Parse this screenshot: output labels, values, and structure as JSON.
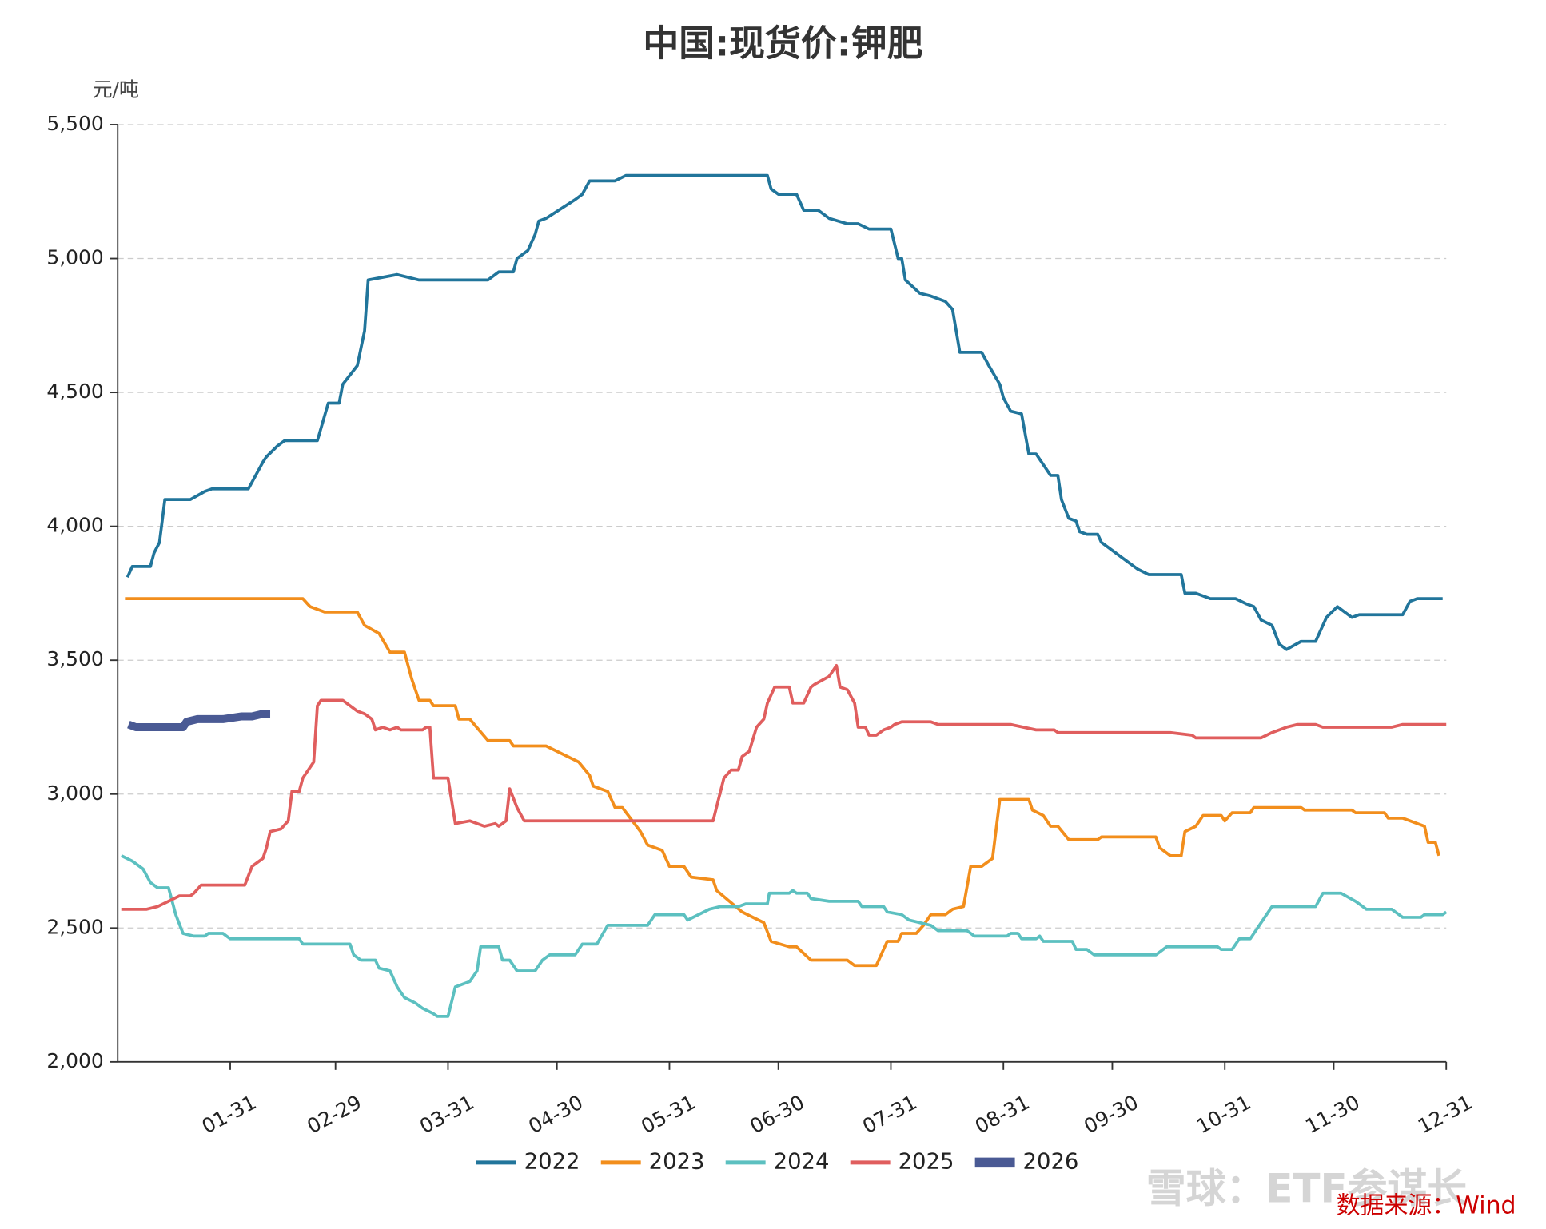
{
  "chart_data": {
    "type": "line",
    "title": "中国:现货价:钾肥",
    "y_label": "元/吨",
    "source": "数据来源：Wind",
    "watermark": "雪球：ETF参谋长",
    "xlim": [
      0,
      366
    ],
    "xticks": [
      {
        "value": 31,
        "label": "01-31"
      },
      {
        "value": 60,
        "label": "02-29"
      },
      {
        "value": 91,
        "label": "03-31"
      },
      {
        "value": 121,
        "label": "04-30"
      },
      {
        "value": 152,
        "label": "05-31"
      },
      {
        "value": 182,
        "label": "06-30"
      },
      {
        "value": 213,
        "label": "07-31"
      },
      {
        "value": 244,
        "label": "08-31"
      },
      {
        "value": 274,
        "label": "09-30"
      },
      {
        "value": 305,
        "label": "10-31"
      },
      {
        "value": 335,
        "label": "11-30"
      },
      {
        "value": 366,
        "label": "12-31"
      }
    ],
    "ylim": [
      2000,
      5500
    ],
    "yticks": [
      {
        "value": 2000,
        "label": "2,000"
      },
      {
        "value": 2500,
        "label": "2,500"
      },
      {
        "value": 3000,
        "label": "3,000"
      },
      {
        "value": 3500,
        "label": "3,500"
      },
      {
        "value": 4000,
        "label": "4,000"
      },
      {
        "value": 4500,
        "label": "4,500"
      },
      {
        "value": 5000,
        "label": "5,000"
      },
      {
        "value": 5500,
        "label": "5,500"
      }
    ],
    "grid": true,
    "legend": "bottom",
    "series": [
      {
        "name": "2022",
        "color": "#21759b",
        "width": 3,
        "x": [
          2.7,
          4,
          9,
          10,
          11.5,
          13,
          20,
          24,
          26,
          36,
          40,
          41,
          44,
          46,
          55,
          58,
          61,
          62,
          66,
          68,
          69,
          73,
          77,
          83,
          102,
          105,
          109,
          110,
          113,
          115,
          116,
          118,
          126,
          128,
          130,
          137,
          140,
          179,
          180,
          182,
          187,
          189,
          193,
          196,
          201,
          204,
          207,
          213,
          215,
          216,
          217,
          221,
          224,
          228,
          230,
          232,
          238,
          240,
          243,
          244,
          246,
          249,
          251,
          253,
          257,
          259,
          260,
          262,
          264,
          265,
          267,
          270,
          271,
          273,
          277,
          281,
          284,
          293,
          294,
          297,
          299,
          301,
          308,
          311,
          313,
          315,
          318,
          320,
          322,
          326,
          330,
          333,
          336,
          340,
          342,
          354,
          356,
          358,
          365
        ],
        "values": [
          3810,
          3850,
          3850,
          3900,
          3940,
          4100,
          4100,
          4130,
          4140,
          4140,
          4240,
          4260,
          4300,
          4320,
          4320,
          4460,
          4460,
          4530,
          4600,
          4730,
          4920,
          4930,
          4940,
          4920,
          4920,
          4950,
          4950,
          5000,
          5030,
          5090,
          5140,
          5150,
          5220,
          5240,
          5290,
          5290,
          5310,
          5310,
          5260,
          5240,
          5240,
          5180,
          5180,
          5150,
          5130,
          5130,
          5110,
          5110,
          5000,
          5000,
          4920,
          4870,
          4860,
          4840,
          4810,
          4650,
          4650,
          4600,
          4530,
          4480,
          4430,
          4420,
          4270,
          4270,
          4190,
          4190,
          4100,
          4030,
          4020,
          3980,
          3970,
          3970,
          3940,
          3920,
          3880,
          3840,
          3820,
          3820,
          3750,
          3750,
          3740,
          3730,
          3730,
          3710,
          3700,
          3650,
          3630,
          3560,
          3540,
          3570,
          3570,
          3660,
          3700,
          3660,
          3670,
          3670,
          3720,
          3730,
          3730
        ]
      },
      {
        "name": "2023",
        "color": "#f28e1c",
        "width": 3,
        "x": [
          2,
          51,
          53,
          57,
          66,
          68,
          72,
          75,
          79,
          81,
          83,
          86,
          87,
          93,
          94,
          97,
          102,
          108,
          109,
          118,
          121,
          127,
          130,
          131,
          135,
          137,
          139,
          144,
          146,
          150,
          152,
          156,
          158,
          164,
          165,
          172,
          175,
          178,
          180,
          185,
          187,
          191,
          201,
          203,
          209,
          212,
          215,
          216,
          220,
          222,
          224,
          228,
          230,
          233,
          235,
          238,
          241,
          243,
          251,
          252,
          255,
          257,
          259,
          262,
          270,
          271,
          286,
          287,
          290,
          293,
          294,
          297,
          299,
          304,
          305,
          307,
          312,
          313,
          326,
          327,
          340,
          341,
          349,
          350,
          354,
          360,
          361,
          363,
          364
        ],
        "values": [
          3730,
          3730,
          3700,
          3680,
          3680,
          3630,
          3600,
          3530,
          3530,
          3430,
          3350,
          3350,
          3330,
          3330,
          3280,
          3280,
          3200,
          3200,
          3180,
          3180,
          3160,
          3120,
          3070,
          3030,
          3010,
          2950,
          2950,
          2860,
          2810,
          2790,
          2730,
          2730,
          2690,
          2680,
          2640,
          2560,
          2540,
          2520,
          2450,
          2430,
          2430,
          2380,
          2380,
          2360,
          2360,
          2450,
          2450,
          2480,
          2480,
          2510,
          2550,
          2550,
          2570,
          2580,
          2730,
          2730,
          2760,
          2980,
          2980,
          2940,
          2920,
          2880,
          2880,
          2830,
          2830,
          2840,
          2840,
          2800,
          2770,
          2770,
          2860,
          2880,
          2920,
          2920,
          2900,
          2930,
          2930,
          2950,
          2950,
          2940,
          2940,
          2930,
          2930,
          2910,
          2910,
          2880,
          2820,
          2820,
          2770
        ]
      },
      {
        "name": "2024",
        "color": "#5cc0c0",
        "width": 3,
        "x": [
          1,
          4,
          7,
          9,
          11,
          14,
          16,
          18,
          21,
          24,
          25,
          29,
          31,
          50,
          51,
          58,
          60,
          64,
          65,
          67,
          71,
          72,
          75,
          77,
          79,
          82,
          84,
          87,
          88,
          91,
          93,
          97,
          99,
          100,
          105,
          106,
          108,
          110,
          115,
          116,
          117,
          119,
          126,
          128,
          132,
          135,
          146,
          148,
          150,
          156,
          157,
          163,
          166,
          171,
          173,
          179,
          179.5,
          185,
          186,
          187,
          190,
          191,
          196,
          204,
          205,
          211,
          212,
          216,
          218,
          224,
          226,
          234,
          236,
          245,
          246,
          248,
          249,
          253,
          254,
          255,
          263,
          264,
          267,
          269,
          286,
          289,
          303,
          304,
          307,
          309,
          312,
          316,
          318,
          323,
          326,
          330,
          332,
          337,
          341,
          342,
          344,
          351,
          352,
          354,
          359,
          360,
          365,
          366
        ],
        "values": [
          2770,
          2750,
          2720,
          2670,
          2650,
          2650,
          2550,
          2480,
          2470,
          2470,
          2480,
          2480,
          2460,
          2460,
          2440,
          2440,
          2440,
          2440,
          2400,
          2380,
          2380,
          2350,
          2340,
          2280,
          2240,
          2220,
          2200,
          2180,
          2170,
          2170,
          2280,
          2300,
          2340,
          2430,
          2430,
          2380,
          2380,
          2340,
          2340,
          2360,
          2380,
          2400,
          2400,
          2440,
          2440,
          2510,
          2510,
          2550,
          2550,
          2550,
          2530,
          2570,
          2580,
          2580,
          2590,
          2590,
          2630,
          2630,
          2640,
          2630,
          2630,
          2610,
          2600,
          2600,
          2580,
          2580,
          2560,
          2550,
          2530,
          2510,
          2490,
          2490,
          2470,
          2470,
          2480,
          2480,
          2460,
          2460,
          2470,
          2450,
          2450,
          2420,
          2420,
          2400,
          2400,
          2430,
          2430,
          2420,
          2420,
          2460,
          2460,
          2540,
          2580,
          2580,
          2580,
          2580,
          2630,
          2630,
          2600,
          2590,
          2570,
          2570,
          2560,
          2540,
          2540,
          2550,
          2550,
          2560
        ]
      },
      {
        "name": "2025",
        "color": "#e05e5e",
        "width": 3,
        "x": [
          1,
          8,
          11,
          14,
          17,
          20,
          21,
          23,
          35,
          37,
          40,
          41,
          42,
          45,
          47,
          48,
          50,
          51,
          54,
          55,
          56,
          62,
          64,
          66,
          68,
          70,
          71,
          73,
          75,
          77,
          78,
          84,
          85,
          86,
          87,
          91,
          93,
          97,
          101,
          104,
          105,
          107,
          108,
          110,
          112,
          164,
          167,
          169,
          171,
          172,
          174,
          176,
          178,
          179,
          181,
          185,
          186,
          189,
          191,
          192,
          196,
          197,
          198,
          199,
          201,
          203,
          204,
          206,
          207,
          209,
          211,
          213,
          214,
          216,
          224,
          226,
          245,
          246,
          253,
          258,
          259,
          289,
          290,
          296,
          297,
          315,
          318,
          322,
          325,
          330,
          332,
          351,
          354,
          366
        ],
        "values": [
          2570,
          2570,
          2580,
          2600,
          2620,
          2620,
          2630,
          2660,
          2660,
          2730,
          2760,
          2800,
          2860,
          2870,
          2900,
          3010,
          3010,
          3060,
          3120,
          3330,
          3350,
          3350,
          3330,
          3310,
          3300,
          3280,
          3240,
          3250,
          3240,
          3250,
          3240,
          3240,
          3250,
          3250,
          3060,
          3060,
          2890,
          2900,
          2880,
          2890,
          2880,
          2900,
          3020,
          2950,
          2900,
          2900,
          3060,
          3090,
          3090,
          3140,
          3160,
          3250,
          3280,
          3340,
          3400,
          3400,
          3340,
          3340,
          3400,
          3410,
          3440,
          3460,
          3480,
          3400,
          3390,
          3340,
          3250,
          3250,
          3220,
          3220,
          3240,
          3250,
          3260,
          3270,
          3270,
          3260,
          3260,
          3260,
          3240,
          3240,
          3230,
          3230,
          3230,
          3220,
          3210,
          3210,
          3230,
          3250,
          3260,
          3260,
          3250,
          3250,
          3260,
          3260
        ]
      },
      {
        "name": "2026",
        "color": "#4a5a94",
        "width": 8,
        "x": [
          3,
          5,
          13,
          18,
          19,
          22,
          28,
          29,
          34,
          37,
          40,
          42
        ],
        "values": [
          3260,
          3250,
          3250,
          3250,
          3270,
          3280,
          3280,
          3280,
          3290,
          3290,
          3300,
          3300
        ]
      }
    ]
  }
}
